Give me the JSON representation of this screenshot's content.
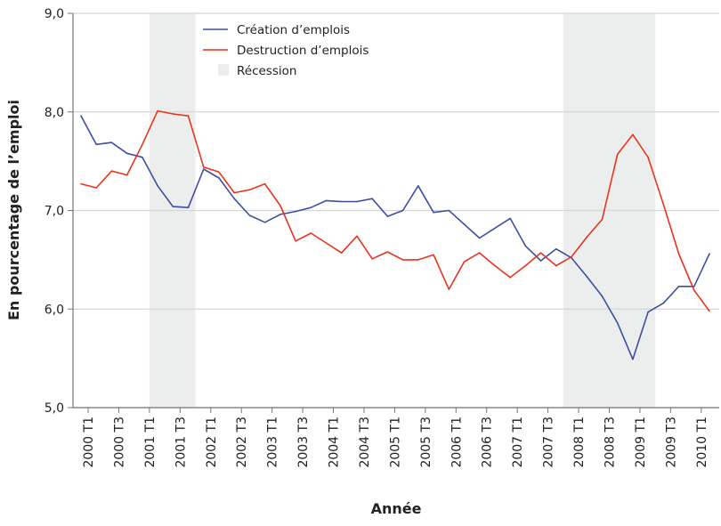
{
  "chart_data": {
    "type": "line",
    "title": "",
    "xlabel": "Année",
    "ylabel": "En pourcentage de l’emploi",
    "ylim": [
      5.0,
      9.0
    ],
    "yticks": [
      "5,0",
      "6,0",
      "7,0",
      "8,0",
      "9,0"
    ],
    "ytick_values": [
      5,
      6,
      7,
      8,
      9
    ],
    "grid": "horizontal",
    "legend_position": "top-center",
    "xtick_labels": [
      "2000 T1",
      "2000 T3",
      "2001 T1",
      "2001 T3",
      "2002 T1",
      "2002 T3",
      "2003 T1",
      "2003 T3",
      "2004 T1",
      "2004 T3",
      "2005 T1",
      "2005 T3",
      "2006 T1",
      "2006 T3",
      "2007 T1",
      "2007 T3",
      "2008 T1",
      "2008 T3",
      "2009 T1",
      "2009 T3",
      "2010 T1"
    ],
    "x": [
      "2000 T1",
      "2000 T2",
      "2000 T3",
      "2000 T4",
      "2001 T1",
      "2001 T2",
      "2001 T3",
      "2001 T4",
      "2002 T1",
      "2002 T2",
      "2002 T3",
      "2002 T4",
      "2003 T1",
      "2003 T2",
      "2003 T3",
      "2003 T4",
      "2004 T1",
      "2004 T2",
      "2004 T3",
      "2004 T4",
      "2005 T1",
      "2005 T2",
      "2005 T3",
      "2005 T4",
      "2006 T1",
      "2006 T2",
      "2006 T3",
      "2006 T4",
      "2007 T1",
      "2007 T2",
      "2007 T3",
      "2007 T4",
      "2008 T1",
      "2008 T2",
      "2008 T3",
      "2008 T4",
      "2009 T1",
      "2009 T2",
      "2009 T3",
      "2009 T4",
      "2010 T1",
      "2010 T2"
    ],
    "series": [
      {
        "name": "Création d’emplois",
        "color": "#3d4ea3",
        "values": [
          7.96,
          7.67,
          7.69,
          7.58,
          7.54,
          7.25,
          7.04,
          7.03,
          7.42,
          7.33,
          7.12,
          6.95,
          6.88,
          6.96,
          6.99,
          7.03,
          7.1,
          7.09,
          7.09,
          7.12,
          6.94,
          7.0,
          7.25,
          6.98,
          7.0,
          6.86,
          6.72,
          6.82,
          6.92,
          6.64,
          6.49,
          6.61,
          6.52,
          6.33,
          6.13,
          5.86,
          5.49,
          5.97,
          6.06,
          6.23,
          6.23,
          6.56
        ]
      },
      {
        "name": "Destruction d’emplois",
        "color": "#e8341c",
        "values": [
          7.27,
          7.23,
          7.4,
          7.36,
          7.67,
          8.01,
          7.98,
          7.96,
          7.44,
          7.39,
          7.18,
          7.21,
          7.27,
          7.05,
          6.69,
          6.77,
          6.67,
          6.57,
          6.74,
          6.51,
          6.58,
          6.5,
          6.5,
          6.55,
          6.2,
          6.48,
          6.57,
          6.44,
          6.32,
          6.44,
          6.57,
          6.44,
          6.53,
          6.73,
          6.91,
          7.57,
          7.77,
          7.54,
          7.06,
          6.56,
          6.19,
          5.98
        ]
      }
    ],
    "recession": {
      "name": "Récession",
      "color": "#eceeee",
      "periods": [
        [
          "2001 T1",
          "2001 T4"
        ],
        [
          "2007 T4",
          "2009 T2"
        ]
      ]
    }
  }
}
